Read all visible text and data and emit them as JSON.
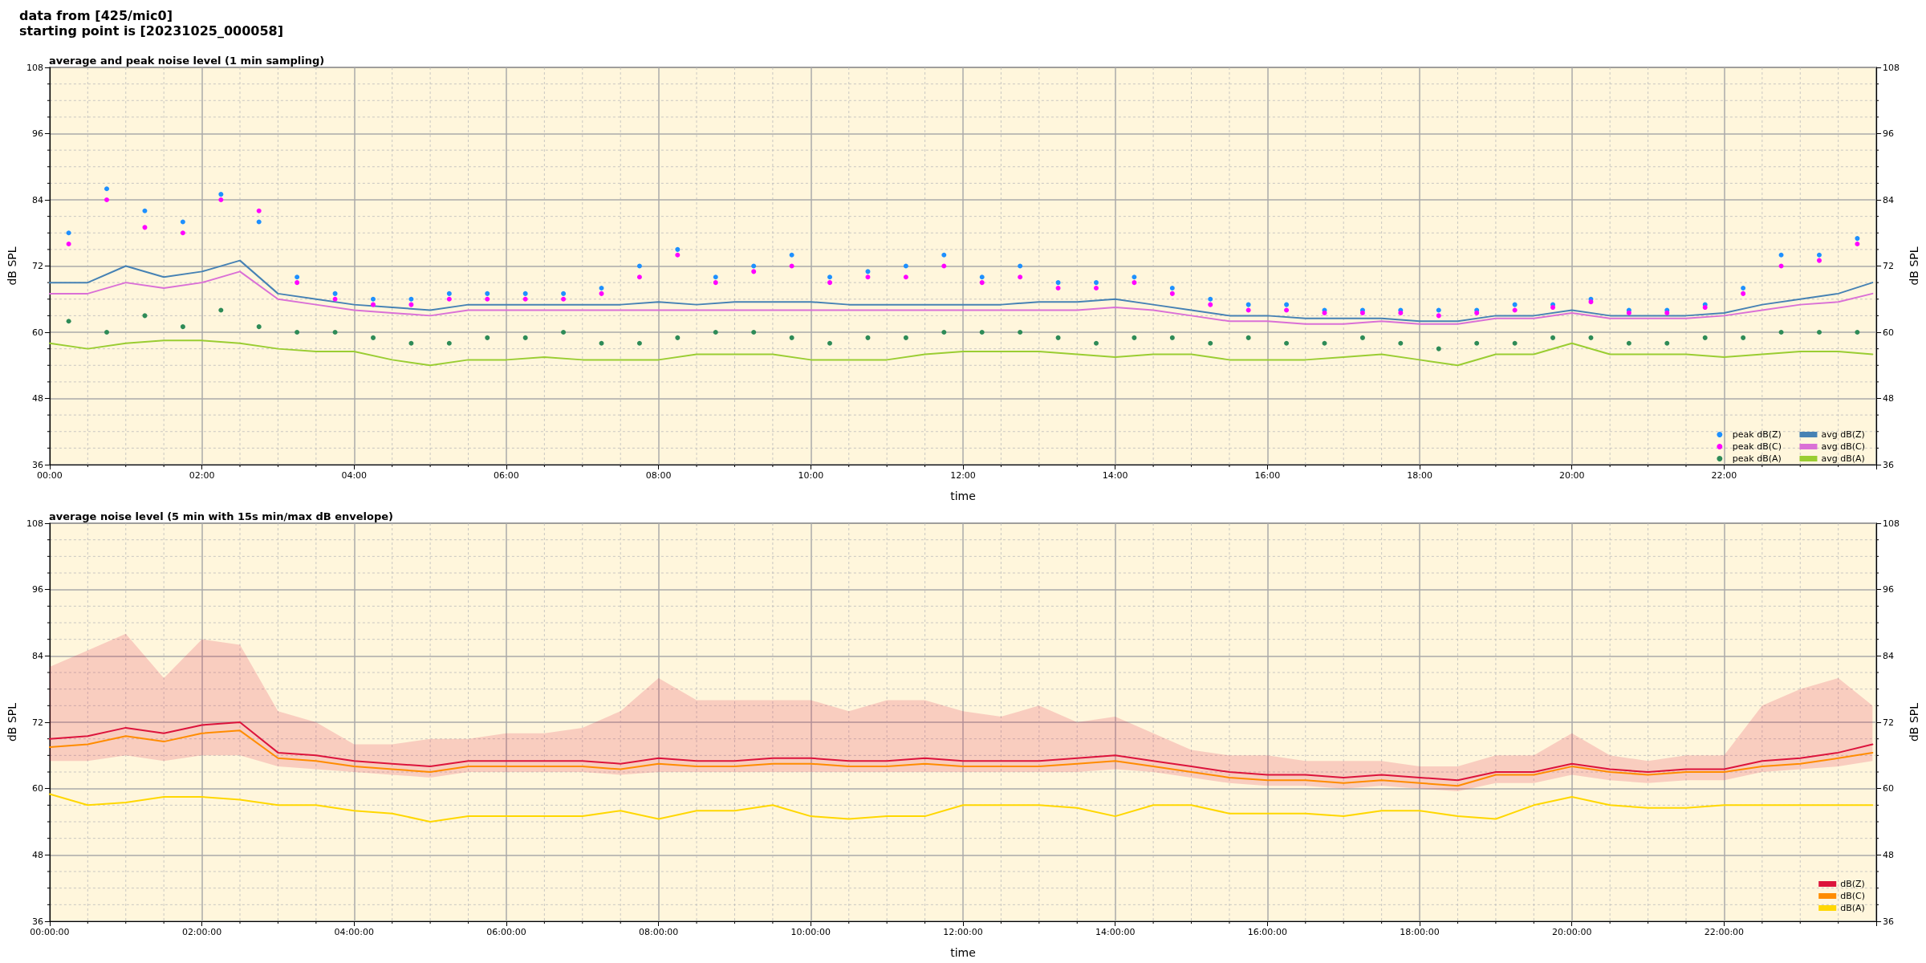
{
  "chart_data": [
    {
      "type": "line",
      "title": "average and peak noise level (1 min sampling)",
      "xlabel": "time",
      "ylabel": "dB SPL",
      "y2label": "dB SPL",
      "annotations": [
        "data from [425/mic0]",
        "starting point is [20231025_000058]"
      ],
      "x": [
        0,
        0.5,
        1,
        1.5,
        2,
        2.5,
        3,
        3.5,
        4,
        4.5,
        5,
        5.5,
        6,
        6.5,
        7,
        7.5,
        8,
        8.5,
        9,
        9.5,
        10,
        10.5,
        11,
        11.5,
        12,
        12.5,
        13,
        13.5,
        14,
        14.5,
        15,
        15.5,
        16,
        16.5,
        17,
        17.5,
        18,
        18.5,
        19,
        19.5,
        20,
        20.5,
        21,
        21.5,
        22,
        22.5,
        23,
        23.5,
        23.95
      ],
      "series": [
        {
          "name": "peak dB(Z)",
          "type": "scatter",
          "marker": "circle",
          "color": "#1e90ff",
          "x": [
            0.25,
            0.75,
            1.25,
            1.75,
            2.25,
            2.75,
            3.25,
            3.75,
            4.25,
            4.75,
            5.25,
            5.75,
            6.25,
            6.75,
            7.25,
            7.75,
            8.25,
            8.75,
            9.25,
            9.75,
            10.25,
            10.75,
            11.25,
            11.75,
            12.25,
            12.75,
            13.25,
            13.75,
            14.25,
            14.75,
            15.25,
            15.75,
            16.25,
            16.75,
            17.25,
            17.75,
            18.25,
            18.75,
            19.25,
            19.75,
            20.25,
            20.75,
            21.25,
            21.75,
            22.25,
            22.75,
            23.25,
            23.75
          ],
          "values": [
            78,
            86,
            82,
            80,
            85,
            80,
            70,
            67,
            66,
            66,
            67,
            67,
            67,
            67,
            68,
            72,
            75,
            70,
            72,
            74,
            70,
            71,
            72,
            74,
            70,
            72,
            69,
            69,
            70,
            68,
            66,
            65,
            65,
            64,
            64,
            64,
            64,
            64,
            65,
            65,
            66,
            64,
            64,
            65,
            68,
            74,
            74,
            77
          ]
        },
        {
          "name": "peak dB(C)",
          "type": "scatter",
          "marker": "circle",
          "color": "#ff00ff",
          "x": [
            0.25,
            0.75,
            1.25,
            1.75,
            2.25,
            2.75,
            3.25,
            3.75,
            4.25,
            4.75,
            5.25,
            5.75,
            6.25,
            6.75,
            7.25,
            7.75,
            8.25,
            8.75,
            9.25,
            9.75,
            10.25,
            10.75,
            11.25,
            11.75,
            12.25,
            12.75,
            13.25,
            13.75,
            14.25,
            14.75,
            15.25,
            15.75,
            16.25,
            16.75,
            17.25,
            17.75,
            18.25,
            18.75,
            19.25,
            19.75,
            20.25,
            20.75,
            21.25,
            21.75,
            22.25,
            22.75,
            23.25,
            23.75
          ],
          "values": [
            76,
            84,
            79,
            78,
            84,
            82,
            69,
            66,
            65,
            65,
            66,
            66,
            66,
            66,
            67,
            70,
            74,
            69,
            71,
            72,
            69,
            70,
            70,
            72,
            69,
            70,
            68,
            68,
            69,
            67,
            65,
            64,
            64,
            63.5,
            63.5,
            63.5,
            63,
            63.5,
            64,
            64.5,
            65.5,
            63.5,
            63.5,
            64.5,
            67,
            72,
            73,
            76
          ]
        },
        {
          "name": "peak dB(A)",
          "type": "scatter",
          "marker": "circle",
          "color": "#2e8b57",
          "x": [
            0.25,
            0.75,
            1.25,
            1.75,
            2.25,
            2.75,
            3.25,
            3.75,
            4.25,
            4.75,
            5.25,
            5.75,
            6.25,
            6.75,
            7.25,
            7.75,
            8.25,
            8.75,
            9.25,
            9.75,
            10.25,
            10.75,
            11.25,
            11.75,
            12.25,
            12.75,
            13.25,
            13.75,
            14.25,
            14.75,
            15.25,
            15.75,
            16.25,
            16.75,
            17.25,
            17.75,
            18.25,
            18.75,
            19.25,
            19.75,
            20.25,
            20.75,
            21.25,
            21.75,
            22.25,
            22.75,
            23.25,
            23.75
          ],
          "values": [
            62,
            60,
            63,
            61,
            64,
            61,
            60,
            60,
            59,
            58,
            58,
            59,
            59,
            60,
            58,
            58,
            59,
            60,
            60,
            59,
            58,
            59,
            59,
            60,
            60,
            60,
            59,
            58,
            59,
            59,
            58,
            59,
            58,
            58,
            59,
            58,
            57,
            58,
            58,
            59,
            59,
            58,
            58,
            59,
            59,
            60,
            60,
            60
          ]
        },
        {
          "name": "avg dB(Z)",
          "color": "#4682b4",
          "values": [
            69,
            69,
            72,
            70,
            71,
            73,
            67,
            66,
            65,
            64.5,
            64,
            65,
            65,
            65,
            65,
            65,
            65.5,
            65,
            65.5,
            65.5,
            65.5,
            65,
            65,
            65,
            65,
            65,
            65.5,
            65.5,
            66,
            65,
            64,
            63,
            63,
            62.5,
            62.5,
            62.5,
            62,
            62,
            63,
            63,
            64,
            63,
            63,
            63,
            63.5,
            65,
            66,
            67,
            69
          ]
        },
        {
          "name": "avg dB(C)",
          "color": "#da70d6",
          "values": [
            67,
            67,
            69,
            68,
            69,
            71,
            66,
            65,
            64,
            63.5,
            63,
            64,
            64,
            64,
            64,
            64,
            64,
            64,
            64,
            64,
            64,
            64,
            64,
            64,
            64,
            64,
            64,
            64,
            64.5,
            64,
            63,
            62,
            62,
            61.5,
            61.5,
            62,
            61.5,
            61.5,
            62.5,
            62.5,
            63.5,
            62.5,
            62.5,
            62.5,
            63,
            64,
            65,
            65.5,
            67
          ]
        },
        {
          "name": "avg dB(A)",
          "color": "#9acd32",
          "values": [
            58,
            57,
            58,
            58.5,
            58.5,
            58,
            57,
            56.5,
            56.5,
            55,
            54,
            55,
            55,
            55.5,
            55,
            55,
            55,
            56,
            56,
            56,
            55,
            55,
            55,
            56,
            56.5,
            56.5,
            56.5,
            56,
            55.5,
            56,
            56,
            55,
            55,
            55,
            55.5,
            56,
            55,
            54,
            56,
            56,
            58,
            56,
            56,
            56,
            55.5,
            56,
            56.5,
            56.5,
            56
          ]
        }
      ],
      "xlim": [
        0,
        24
      ],
      "xticks": [
        {
          "value": 0,
          "label": "00:00"
        },
        {
          "value": 2,
          "label": "02:00"
        },
        {
          "value": 4,
          "label": "04:00"
        },
        {
          "value": 6,
          "label": "06:00"
        },
        {
          "value": 8,
          "label": "08:00"
        },
        {
          "value": 10,
          "label": "10:00"
        },
        {
          "value": 12,
          "label": "12:00"
        },
        {
          "value": 14,
          "label": "14:00"
        },
        {
          "value": 16,
          "label": "16:00"
        },
        {
          "value": 18,
          "label": "18:00"
        },
        {
          "value": 20,
          "label": "20:00"
        },
        {
          "value": 22,
          "label": "22:00"
        },
        {
          "value": 0.5,
          "label": null
        },
        {
          "value": 1,
          "label": null
        },
        {
          "value": 1.5,
          "label": null
        },
        {
          "value": 2.5,
          "label": null
        },
        {
          "value": 3,
          "label": null
        },
        {
          "value": 3.5,
          "label": null
        },
        {
          "value": 4.5,
          "label": null
        },
        {
          "value": 5,
          "label": null
        },
        {
          "value": 5.5,
          "label": null
        },
        {
          "value": 6.5,
          "label": null
        },
        {
          "value": 7,
          "label": null
        },
        {
          "value": 7.5,
          "label": null
        },
        {
          "value": 8.5,
          "label": null
        },
        {
          "value": 9,
          "label": null
        },
        {
          "value": 9.5,
          "label": null
        },
        {
          "value": 10.5,
          "label": null
        },
        {
          "value": 11,
          "label": null
        },
        {
          "value": 11.5,
          "label": null
        },
        {
          "value": 12.5,
          "label": null
        },
        {
          "value": 13,
          "label": null
        },
        {
          "value": 13.5,
          "label": null
        },
        {
          "value": 14.5,
          "label": null
        },
        {
          "value": 15,
          "label": null
        },
        {
          "value": 15.5,
          "label": null
        },
        {
          "value": 16.5,
          "label": null
        },
        {
          "value": 17,
          "label": null
        },
        {
          "value": 17.5,
          "label": null
        },
        {
          "value": 18.5,
          "label": null
        },
        {
          "value": 19,
          "label": null
        },
        {
          "value": 19.5,
          "label": null
        },
        {
          "value": 20.5,
          "label": null
        },
        {
          "value": 21,
          "label": null
        },
        {
          "value": 21.5,
          "label": null
        },
        {
          "value": 22.5,
          "label": null
        },
        {
          "value": 23,
          "label": null
        },
        {
          "value": 23.5,
          "label": null
        }
      ],
      "ylim": [
        36,
        108
      ],
      "yticks": [
        36,
        48,
        60,
        72,
        84,
        96,
        108,
        {
          "value": 39,
          "label": null
        },
        {
          "value": 42,
          "label": null
        },
        {
          "value": 45,
          "label": null
        },
        {
          "value": 51,
          "label": null
        },
        {
          "value": 54,
          "label": null
        },
        {
          "value": 57,
          "label": null
        },
        {
          "value": 63,
          "label": null
        },
        {
          "value": 66,
          "label": null
        },
        {
          "value": 69,
          "label": null
        },
        {
          "value": 75,
          "label": null
        },
        {
          "value": 78,
          "label": null
        },
        {
          "value": 81,
          "label": null
        },
        {
          "value": 87,
          "label": null
        },
        {
          "value": 90,
          "label": null
        },
        {
          "value": 93,
          "label": null
        },
        {
          "value": 99,
          "label": null
        },
        {
          "value": 102,
          "label": null
        },
        {
          "value": 105,
          "label": null
        }
      ],
      "y2lim": [
        36,
        108
      ],
      "y2ticks": [
        36,
        48,
        60,
        72,
        84,
        96,
        108,
        {
          "value": 39,
          "label": null
        },
        {
          "value": 42,
          "label": null
        },
        {
          "value": 45,
          "label": null
        },
        {
          "value": 51,
          "label": null
        },
        {
          "value": 54,
          "label": null
        },
        {
          "value": 57,
          "label": null
        },
        {
          "value": 63,
          "label": null
        },
        {
          "value": 66,
          "label": null
        },
        {
          "value": 69,
          "label": null
        },
        {
          "value": 75,
          "label": null
        },
        {
          "value": 78,
          "label": null
        },
        {
          "value": 81,
          "label": null
        },
        {
          "value": 87,
          "label": null
        },
        {
          "value": 90,
          "label": null
        },
        {
          "value": 93,
          "label": null
        },
        {
          "value": 99,
          "label": null
        },
        {
          "value": 102,
          "label": null
        },
        {
          "value": 105,
          "label": null
        }
      ],
      "grid": true,
      "legend": "bottom right",
      "marker": "none",
      "line_style": "solid"
    },
    {
      "type": "line",
      "title": "average noise level (5 min with 15s min/max dB envelope)",
      "xlabel": "time",
      "ylabel": "dB SPL",
      "y2label": "dB SPL",
      "x": [
        0,
        0.5,
        1,
        1.5,
        2,
        2.5,
        3,
        3.5,
        4,
        4.5,
        5,
        5.5,
        6,
        6.5,
        7,
        7.5,
        8,
        8.5,
        9,
        9.5,
        10,
        10.5,
        11,
        11.5,
        12,
        12.5,
        13,
        13.5,
        14,
        14.5,
        15,
        15.5,
        16,
        16.5,
        17,
        17.5,
        18,
        18.5,
        19,
        19.5,
        20,
        20.5,
        21,
        21.5,
        22,
        22.5,
        23,
        23.5,
        23.95
      ],
      "series": [
        {
          "name": "dB(Z)",
          "color": "#dc143c",
          "values": [
            69,
            69.5,
            71,
            70,
            71.5,
            72,
            66.5,
            66,
            65,
            64.5,
            64,
            65,
            65,
            65,
            65,
            64.5,
            65.5,
            65,
            65,
            65.5,
            65.5,
            65,
            65,
            65.5,
            65,
            65,
            65,
            65.5,
            66,
            65,
            64,
            63,
            62.5,
            62.5,
            62,
            62.5,
            62,
            61.5,
            63,
            63,
            64.5,
            63.5,
            63,
            63.5,
            63.5,
            65,
            65.5,
            66.5,
            68
          ],
          "lower": [
            65,
            65,
            66,
            65,
            66,
            66,
            64,
            63.5,
            63,
            62.5,
            62,
            63,
            63,
            63,
            63,
            62.5,
            63,
            63,
            63,
            63,
            63,
            63,
            63,
            63,
            63,
            63,
            63,
            63,
            63.5,
            63,
            62,
            61,
            60.5,
            60.5,
            60,
            60.5,
            60,
            59.5,
            61,
            61,
            62.5,
            61.5,
            61,
            61.5,
            61.5,
            63,
            63.5,
            64,
            65
          ],
          "upper": [
            82,
            85,
            88,
            80,
            87,
            86,
            74,
            72,
            68,
            68,
            69,
            69,
            70,
            70,
            71,
            74,
            80,
            76,
            76,
            76,
            76,
            74,
            76,
            76,
            74,
            73,
            75,
            72,
            73,
            70,
            67,
            66,
            66,
            65,
            65,
            65,
            64,
            64,
            66,
            66,
            70,
            66,
            65,
            66,
            66,
            75,
            78,
            80,
            75
          ]
        },
        {
          "name": "dB(C)",
          "color": "#ff8c00",
          "values": [
            67.5,
            68,
            69.5,
            68.5,
            70,
            70.5,
            65.5,
            65,
            64,
            63.5,
            63,
            64,
            64,
            64,
            64,
            63.5,
            64.5,
            64,
            64,
            64.5,
            64.5,
            64,
            64,
            64.5,
            64,
            64,
            64,
            64.5,
            65,
            64,
            63,
            62,
            61.5,
            61.5,
            61,
            61.5,
            61,
            60.5,
            62.5,
            62.5,
            64,
            63,
            62.5,
            63,
            63,
            64,
            64.5,
            65.5,
            66.5
          ]
        },
        {
          "name": "dB(A)",
          "color": "#ffd700",
          "values": [
            59,
            57,
            57.5,
            58.5,
            58.5,
            58,
            57,
            57,
            56,
            55.5,
            54,
            55,
            55,
            55,
            55,
            56,
            54.5,
            56,
            56,
            57,
            55,
            54.5,
            55,
            55,
            57,
            57,
            57,
            56.5,
            55,
            57,
            57,
            55.5,
            55.5,
            55.5,
            55,
            56,
            56,
            55,
            54.5,
            57,
            58.5,
            57,
            56.5,
            56.5,
            57,
            57,
            57,
            57,
            57
          ]
        }
      ],
      "xlim": [
        0,
        24
      ],
      "xticks": [
        {
          "value": 0,
          "label": "00:00:00"
        },
        {
          "value": 2,
          "label": "02:00:00"
        },
        {
          "value": 4,
          "label": "04:00:00"
        },
        {
          "value": 6,
          "label": "06:00:00"
        },
        {
          "value": 8,
          "label": "08:00:00"
        },
        {
          "value": 10,
          "label": "10:00:00"
        },
        {
          "value": 12,
          "label": "12:00:00"
        },
        {
          "value": 14,
          "label": "14:00:00"
        },
        {
          "value": 16,
          "label": "16:00:00"
        },
        {
          "value": 18,
          "label": "18:00:00"
        },
        {
          "value": 20,
          "label": "20:00:00"
        },
        {
          "value": 22,
          "label": "22:00:00"
        },
        {
          "value": 0.5,
          "label": null
        },
        {
          "value": 1,
          "label": null
        },
        {
          "value": 1.5,
          "label": null
        },
        {
          "value": 2.5,
          "label": null
        },
        {
          "value": 3,
          "label": null
        },
        {
          "value": 3.5,
          "label": null
        },
        {
          "value": 4.5,
          "label": null
        },
        {
          "value": 5,
          "label": null
        },
        {
          "value": 5.5,
          "label": null
        },
        {
          "value": 6.5,
          "label": null
        },
        {
          "value": 7,
          "label": null
        },
        {
          "value": 7.5,
          "label": null
        },
        {
          "value": 8.5,
          "label": null
        },
        {
          "value": 9,
          "label": null
        },
        {
          "value": 9.5,
          "label": null
        },
        {
          "value": 10.5,
          "label": null
        },
        {
          "value": 11,
          "label": null
        },
        {
          "value": 11.5,
          "label": null
        },
        {
          "value": 12.5,
          "label": null
        },
        {
          "value": 13,
          "label": null
        },
        {
          "value": 13.5,
          "label": null
        },
        {
          "value": 14.5,
          "label": null
        },
        {
          "value": 15,
          "label": null
        },
        {
          "value": 15.5,
          "label": null
        },
        {
          "value": 16.5,
          "label": null
        },
        {
          "value": 17,
          "label": null
        },
        {
          "value": 17.5,
          "label": null
        },
        {
          "value": 18.5,
          "label": null
        },
        {
          "value": 19,
          "label": null
        },
        {
          "value": 19.5,
          "label": null
        },
        {
          "value": 20.5,
          "label": null
        },
        {
          "value": 21,
          "label": null
        },
        {
          "value": 21.5,
          "label": null
        },
        {
          "value": 22.5,
          "label": null
        },
        {
          "value": 23,
          "label": null
        },
        {
          "value": 23.5,
          "label": null
        }
      ],
      "ylim": [
        36,
        108
      ],
      "yticks": [
        36,
        48,
        60,
        72,
        84,
        96,
        108,
        {
          "value": 39,
          "label": null
        },
        {
          "value": 42,
          "label": null
        },
        {
          "value": 45,
          "label": null
        },
        {
          "value": 51,
          "label": null
        },
        {
          "value": 54,
          "label": null
        },
        {
          "value": 57,
          "label": null
        },
        {
          "value": 63,
          "label": null
        },
        {
          "value": 66,
          "label": null
        },
        {
          "value": 69,
          "label": null
        },
        {
          "value": 75,
          "label": null
        },
        {
          "value": 78,
          "label": null
        },
        {
          "value": 81,
          "label": null
        },
        {
          "value": 87,
          "label": null
        },
        {
          "value": 90,
          "label": null
        },
        {
          "value": 93,
          "label": null
        },
        {
          "value": 99,
          "label": null
        },
        {
          "value": 102,
          "label": null
        },
        {
          "value": 105,
          "label": null
        }
      ],
      "y2lim": [
        36,
        108
      ],
      "y2ticks": [
        36,
        48,
        60,
        72,
        84,
        96,
        108,
        {
          "value": 39,
          "label": null
        },
        {
          "value": 42,
          "label": null
        },
        {
          "value": 45,
          "label": null
        },
        {
          "value": 51,
          "label": null
        },
        {
          "value": 54,
          "label": null
        },
        {
          "value": 57,
          "label": null
        },
        {
          "value": 63,
          "label": null
        },
        {
          "value": 66,
          "label": null
        },
        {
          "value": 69,
          "label": null
        },
        {
          "value": 75,
          "label": null
        },
        {
          "value": 78,
          "label": null
        },
        {
          "value": 81,
          "label": null
        },
        {
          "value": 87,
          "label": null
        },
        {
          "value": 90,
          "label": null
        },
        {
          "value": 93,
          "label": null
        },
        {
          "value": 99,
          "label": null
        },
        {
          "value": 102,
          "label": null
        },
        {
          "value": 105,
          "label": null
        }
      ],
      "grid": true,
      "legend": "bottom right",
      "marker": "none",
      "line_style": "solid"
    }
  ]
}
